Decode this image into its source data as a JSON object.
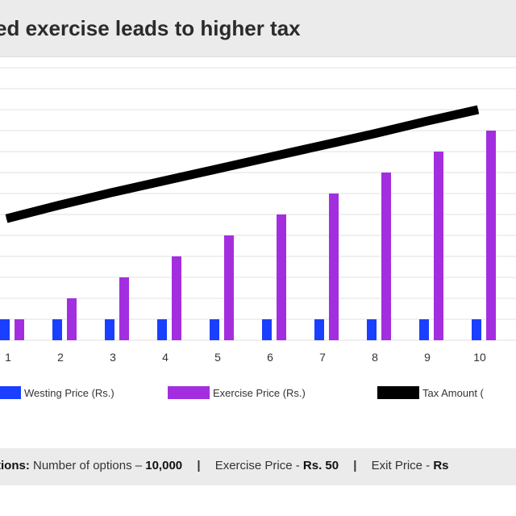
{
  "chart_data": {
    "type": "bar",
    "title": "ed exercise leads to higher tax",
    "categories": [
      "1",
      "2",
      "3",
      "4",
      "5",
      "6",
      "7",
      "8",
      "9",
      "10"
    ],
    "series": [
      {
        "name": "Westing Price (Rs.)",
        "kind": "bar",
        "color": "#1a3fff",
        "values": [
          50,
          50,
          50,
          50,
          50,
          50,
          50,
          50,
          50,
          50
        ]
      },
      {
        "name": "Exercise Price (Rs.)",
        "kind": "bar",
        "color": "#a32ee0",
        "values": [
          50,
          100,
          150,
          200,
          250,
          300,
          350,
          400,
          450,
          500
        ]
      },
      {
        "name": "Tax Amount (",
        "kind": "line",
        "color": "#000000",
        "values": [
          290,
          322,
          352,
          380,
          408,
          436,
          464,
          492,
          522,
          550
        ]
      }
    ],
    "ylim": [
      0,
      650
    ],
    "grid": true,
    "legend_position": "bottom",
    "xlabel": "",
    "ylabel": ""
  },
  "footer": {
    "label": "tions:",
    "options_text": "Number of options –",
    "options_value": "10,000",
    "sep1": "|",
    "exercise_text": "Exercise Price -",
    "exercise_value": "Rs. 50",
    "sep2": "|",
    "exit_text": "Exit Price -",
    "exit_value": "Rs"
  }
}
